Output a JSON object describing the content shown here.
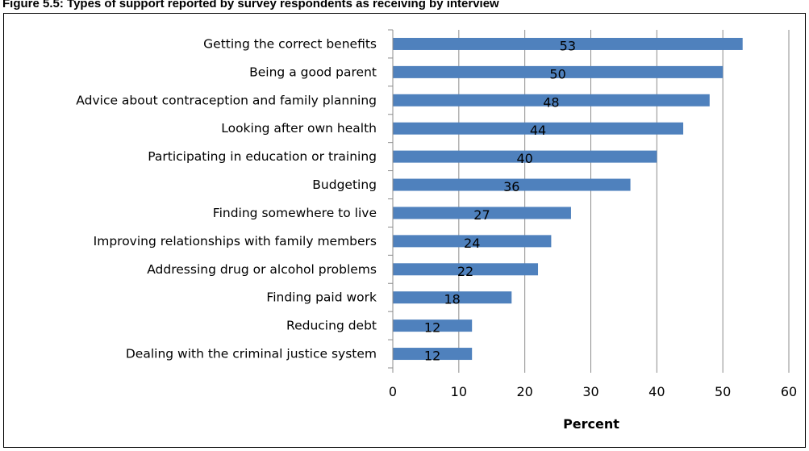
{
  "figure": {
    "title": "Figure 5.5: Types of support reported by survey respondents as receiving by interview"
  },
  "chart_data": {
    "type": "bar",
    "orientation": "horizontal",
    "title": "",
    "xlabel": "Percent",
    "ylabel": "",
    "categories": [
      "Getting the correct benefits",
      "Being a good parent",
      "Advice about contraception and family planning",
      "Looking after own health",
      "Participating in education or training",
      "Budgeting",
      "Finding somewhere to live",
      "Improving relationships with family members",
      "Addressing drug or alcohol problems",
      "Finding paid work",
      "Reducing  debt",
      "Dealing with the criminal justice system"
    ],
    "values": [
      53,
      50,
      48,
      44,
      40,
      36,
      27,
      24,
      22,
      18,
      12,
      12
    ],
    "xlim": [
      0,
      60
    ],
    "xticks": [
      0,
      10,
      20,
      30,
      40,
      50,
      60
    ],
    "grid": "vertical",
    "legend": "none",
    "bar_color": "#4F81BD",
    "data_labels": true
  }
}
